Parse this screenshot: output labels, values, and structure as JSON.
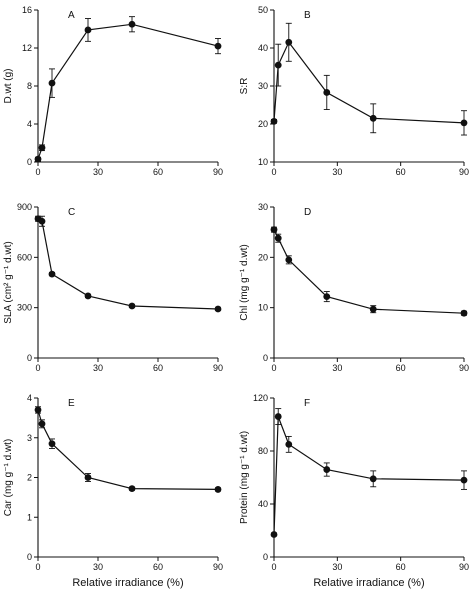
{
  "chart_data": [
    {
      "type": "line",
      "panel_label": "A",
      "ylabel": "D.wt (g)",
      "xlabel": "",
      "xlim": [
        0,
        90
      ],
      "ylim": [
        0,
        16
      ],
      "xticks": [
        0,
        30,
        60,
        90
      ],
      "yticks": [
        0,
        4,
        8,
        12,
        16
      ],
      "series": [
        {
          "x": [
            0,
            2,
            7,
            25,
            47,
            90
          ],
          "y": [
            0.3,
            1.5,
            8.3,
            13.9,
            14.5,
            12.2
          ],
          "err": [
            0.2,
            0.3,
            1.5,
            1.2,
            0.8,
            0.8
          ]
        }
      ]
    },
    {
      "type": "line",
      "panel_label": "B",
      "ylabel": "S:R",
      "xlabel": "",
      "xlim": [
        0,
        90
      ],
      "ylim": [
        10,
        50
      ],
      "xticks": [
        0,
        30,
        60,
        90
      ],
      "yticks": [
        10,
        20,
        30,
        40,
        50
      ],
      "series": [
        {
          "x": [
            0,
            2,
            7,
            25,
            47,
            90
          ],
          "y": [
            20.7,
            35.5,
            41.5,
            28.3,
            21.5,
            20.3
          ],
          "err": [
            0.5,
            5.5,
            5,
            4.5,
            3.8,
            3.2
          ]
        }
      ]
    },
    {
      "type": "line",
      "panel_label": "C",
      "ylabel": "SLA (cm² g⁻¹ d.wt)",
      "xlabel": "",
      "xlim": [
        0,
        90
      ],
      "ylim": [
        0,
        900
      ],
      "xticks": [
        0,
        30,
        60,
        90
      ],
      "yticks": [
        0,
        300,
        600,
        900
      ],
      "series": [
        {
          "x": [
            0,
            2,
            7,
            25,
            47,
            90
          ],
          "y": [
            830,
            815,
            500,
            370,
            310,
            292
          ],
          "err": [
            15,
            30,
            10,
            10,
            8,
            8
          ]
        }
      ]
    },
    {
      "type": "line",
      "panel_label": "D",
      "ylabel": "Chl (mg g⁻¹ d.wt)",
      "xlabel": "",
      "xlim": [
        0,
        90
      ],
      "ylim": [
        0,
        30
      ],
      "xticks": [
        0,
        30,
        60,
        90
      ],
      "yticks": [
        0,
        10,
        20,
        30
      ],
      "series": [
        {
          "x": [
            0,
            2,
            7,
            25,
            47,
            90
          ],
          "y": [
            25.5,
            23.8,
            19.5,
            12.2,
            9.7,
            8.9
          ],
          "err": [
            0.5,
            0.8,
            0.8,
            1,
            0.7,
            0.4
          ]
        }
      ]
    },
    {
      "type": "line",
      "panel_label": "E",
      "ylabel": "Car (mg g⁻¹ d.wt)",
      "xlabel": "Relative irradiance (%)",
      "xlim": [
        0,
        90
      ],
      "ylim": [
        0,
        4
      ],
      "xticks": [
        0,
        30,
        60,
        90
      ],
      "yticks": [
        0,
        1,
        2,
        3,
        4
      ],
      "series": [
        {
          "x": [
            0,
            2,
            7,
            25,
            47,
            90
          ],
          "y": [
            3.7,
            3.35,
            2.85,
            2,
            1.72,
            1.7
          ],
          "err": [
            0.08,
            0.1,
            0.12,
            0.1,
            0.04,
            0.04
          ]
        }
      ]
    },
    {
      "type": "line",
      "panel_label": "F",
      "ylabel": "Protein (mg g⁻¹ d.wt)",
      "xlabel": "Relative irradiance (%)",
      "xlim": [
        0,
        90
      ],
      "ylim": [
        0,
        120
      ],
      "xticks": [
        0,
        30,
        60,
        90
      ],
      "yticks": [
        0,
        40,
        80,
        120
      ],
      "series": [
        {
          "x": [
            0,
            2,
            7,
            25,
            47,
            90
          ],
          "y": [
            17,
            106,
            85,
            66,
            59,
            58
          ],
          "err": [
            1,
            6,
            6,
            5,
            6,
            7
          ]
        }
      ]
    }
  ]
}
